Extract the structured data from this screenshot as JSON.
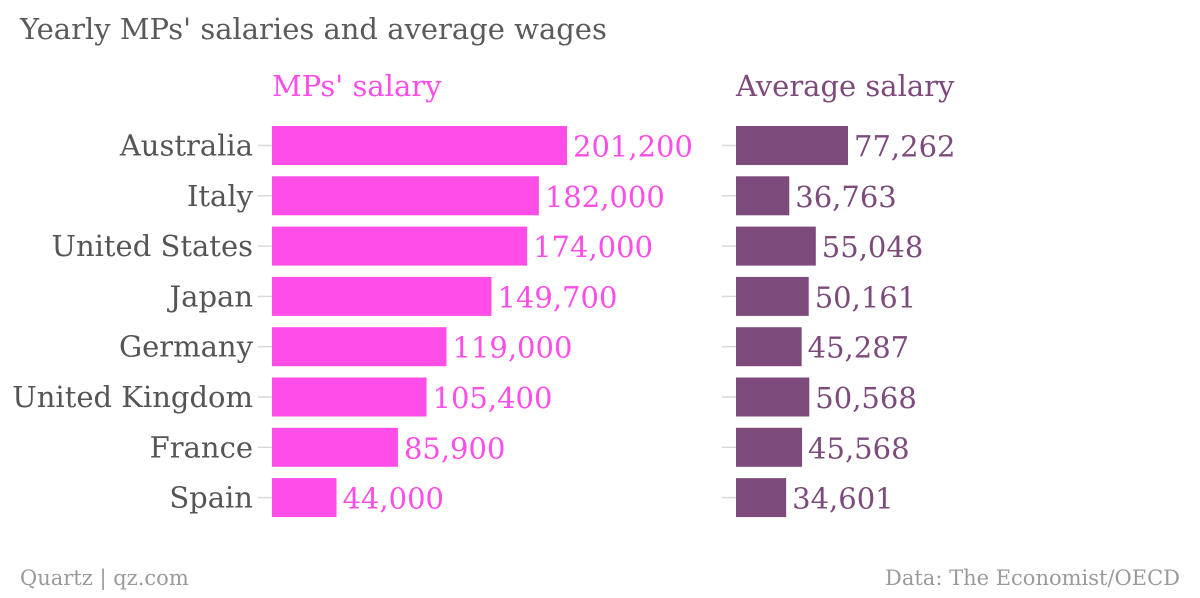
{
  "title": "Yearly MPs' salaries and average wages",
  "footer": {
    "source_left": "Quartz | qz.com",
    "source_right": "Data: The Economist/OECD"
  },
  "chart_data": {
    "type": "bar",
    "orientation": "horizontal",
    "title": "Yearly MPs' salaries and average wages",
    "categories": [
      "Australia",
      "Italy",
      "United States",
      "Japan",
      "Germany",
      "United Kingdom",
      "France",
      "Spain"
    ],
    "series": [
      {
        "name": "MPs' salary",
        "color": "#ff4de8",
        "values": [
          201200,
          182000,
          174000,
          149700,
          119000,
          105400,
          85900,
          44000
        ],
        "labels": [
          "201,200",
          "182,000",
          "174,000",
          "149,700",
          "119,000",
          "105,400",
          "85,900",
          "44,000"
        ]
      },
      {
        "name": "Average salary",
        "color": "#7d4a7c",
        "values": [
          77262,
          36763,
          55048,
          50161,
          45287,
          50568,
          45568,
          34601
        ],
        "labels": [
          "77,262",
          "36,763",
          "55,048",
          "50,161",
          "45,287",
          "50,568",
          "45,568",
          "34,601"
        ]
      }
    ],
    "data_labels": true,
    "grid": false,
    "legend": "none"
  }
}
